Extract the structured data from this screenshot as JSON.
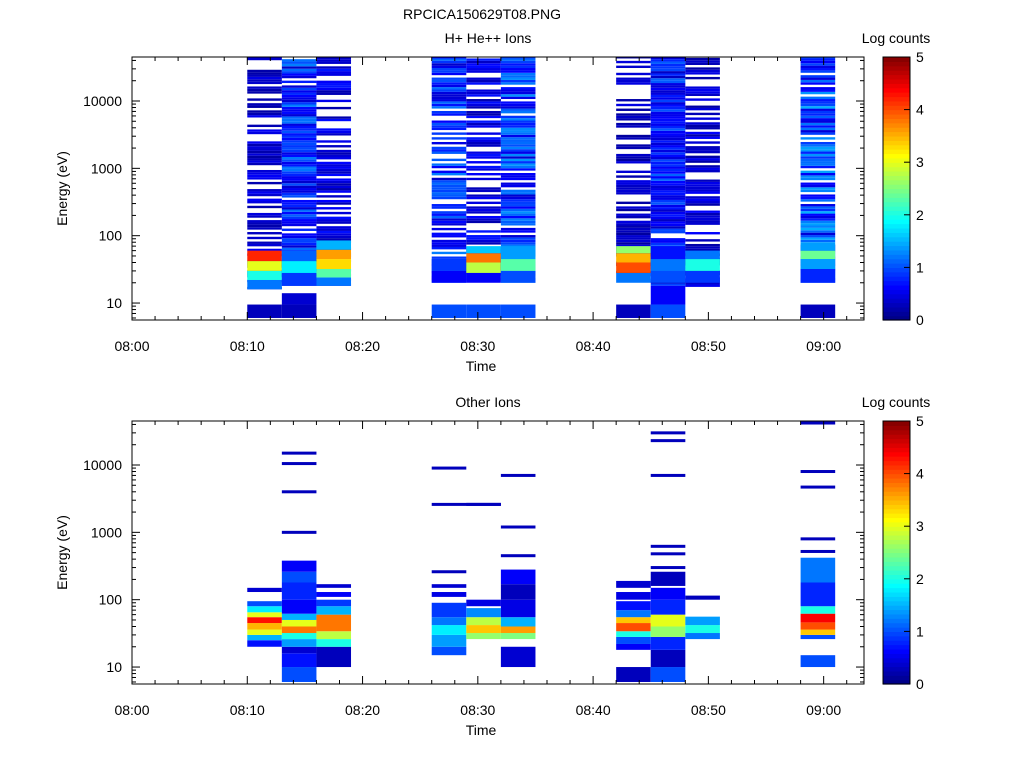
{
  "figure": {
    "title": "RPCICA150629T08.PNG"
  },
  "colorscale": [
    "#00007f",
    "#0000ff",
    "#0080ff",
    "#00ffff",
    "#80ff80",
    "#ffff00",
    "#ff8000",
    "#ff0000",
    "#7f0000"
  ],
  "chart_data": [
    {
      "type": "heatmap",
      "title": "H+ He++ Ions",
      "xlabel": "Time",
      "ylabel": "Energy (eV)",
      "x_ticks": [
        "08:00",
        "08:10",
        "08:20",
        "08:30",
        "08:40",
        "08:50",
        "09:00"
      ],
      "y_ticks": [
        "10",
        "100",
        "1000",
        "10000"
      ],
      "y_scale": "log",
      "ylim": [
        5.6,
        45000
      ],
      "colorbar": {
        "label": "Log counts",
        "ticks": [
          "0",
          "1",
          "2",
          "3",
          "4",
          "5"
        ],
        "range": [
          0,
          5
        ]
      },
      "columns": [
        {
          "t0": "08:10",
          "t1": "08:13",
          "bg": 0.5,
          "sparsity": 0.35,
          "bands": [
            [
              16,
              22,
              1.2
            ],
            [
              22,
              30,
              2.0
            ],
            [
              30,
              42,
              3.0
            ],
            [
              42,
              60,
              4.2
            ]
          ],
          "lowcut": 16,
          "bottom": [
            [
              6,
              9.5,
              0.3
            ]
          ]
        },
        {
          "t0": "08:13",
          "t1": "08:16",
          "bg": 1.0,
          "sparsity": 0.05,
          "bands": [
            [
              18,
              28,
              0.9
            ],
            [
              28,
              42,
              1.8
            ],
            [
              42,
              60,
              1.1
            ]
          ],
          "lowcut": 18,
          "bottom": [
            [
              6,
              9.5,
              0.3
            ],
            [
              9.5,
              14,
              0.4
            ]
          ]
        },
        {
          "t0": "08:16",
          "t1": "08:19",
          "bg": 0.6,
          "sparsity": 0.3,
          "bands": [
            [
              18,
              24,
              1.2
            ],
            [
              24,
              32,
              2.3
            ],
            [
              32,
              45,
              3.3
            ],
            [
              45,
              62,
              3.6
            ],
            [
              62,
              85,
              1.5
            ]
          ],
          "lowcut": 18,
          "bottom": []
        },
        {
          "t0": "08:26",
          "t1": "08:29",
          "bg": 1.0,
          "sparsity": 0.15,
          "bands": [
            [
              20,
              30,
              0.6
            ],
            [
              30,
              45,
              0.9
            ]
          ],
          "lowcut": 20,
          "bottom": [
            [
              6,
              9.5,
              1.0
            ]
          ]
        },
        {
          "t0": "08:29",
          "t1": "08:32",
          "bg": 0.6,
          "sparsity": 0.3,
          "bands": [
            [
              20,
              28,
              0.6
            ],
            [
              28,
              40,
              2.8
            ],
            [
              40,
              55,
              3.8
            ],
            [
              55,
              70,
              1.6
            ]
          ],
          "lowcut": 20,
          "bottom": [
            [
              6,
              9.5,
              1.0
            ]
          ]
        },
        {
          "t0": "08:32",
          "t1": "08:35",
          "bg": 1.1,
          "sparsity": 0.08,
          "bands": [
            [
              20,
              30,
              1.0
            ],
            [
              30,
              45,
              2.3
            ],
            [
              45,
              70,
              1.4
            ]
          ],
          "lowcut": 20,
          "bottom": [
            [
              6,
              9.5,
              1.0
            ]
          ]
        },
        {
          "t0": "08:42",
          "t1": "08:45",
          "bg": 0.4,
          "sparsity": 0.35,
          "bands": [
            [
              20,
              28,
              1.2
            ],
            [
              28,
              40,
              4.0
            ],
            [
              40,
              55,
              3.5
            ],
            [
              55,
              70,
              2.6
            ]
          ],
          "lowcut": 20,
          "bottom": [
            [
              6,
              9.5,
              0.3
            ]
          ]
        },
        {
          "t0": "08:45",
          "t1": "08:48",
          "bg": 0.9,
          "sparsity": 0.05,
          "bands": [
            [
              20,
              30,
              1.0
            ],
            [
              30,
              45,
              1.2
            ],
            [
              45,
              70,
              0.7
            ]
          ],
          "lowcut": 18,
          "bottom": [
            [
              6,
              9.5,
              1.0
            ],
            [
              9.5,
              18,
              0.6
            ]
          ]
        },
        {
          "t0": "08:48",
          "t1": "08:51",
          "bg": 0.5,
          "sparsity": 0.4,
          "bands": [
            [
              20,
              30,
              0.9
            ],
            [
              30,
              45,
              2.0
            ],
            [
              45,
              60,
              1.2
            ]
          ],
          "lowcut": 16,
          "bottom": []
        },
        {
          "t0": "08:58",
          "t1": "09:01",
          "bg": 1.2,
          "sparsity": 0.1,
          "bands": [
            [
              20,
              32,
              0.8
            ],
            [
              32,
              45,
              1.4
            ],
            [
              45,
              60,
              2.4
            ],
            [
              60,
              80,
              1.4
            ]
          ],
          "lowcut": 20,
          "bottom": [
            [
              6,
              9.5,
              0.3
            ]
          ]
        }
      ]
    },
    {
      "type": "heatmap",
      "title": "Other Ions",
      "xlabel": "Time",
      "ylabel": "Energy (eV)",
      "x_ticks": [
        "08:00",
        "08:10",
        "08:20",
        "08:30",
        "08:40",
        "08:50",
        "09:00"
      ],
      "y_ticks": [
        "10",
        "100",
        "1000",
        "10000"
      ],
      "y_scale": "log",
      "ylim": [
        5.6,
        45000
      ],
      "colorbar": {
        "label": "Log counts",
        "ticks": [
          "0",
          "1",
          "2",
          "3",
          "4",
          "5"
        ],
        "range": [
          0,
          5
        ]
      },
      "columns": [
        {
          "t0": "08:10",
          "t1": "08:13",
          "bands": [
            [
              20,
              25,
              0.7
            ],
            [
              25,
              30,
              1.5
            ],
            [
              30,
              36,
              3.0
            ],
            [
              36,
              45,
              3.5
            ],
            [
              45,
              55,
              4.3
            ],
            [
              55,
              65,
              3.0
            ],
            [
              65,
              80,
              1.8
            ],
            [
              80,
              95,
              1.0
            ],
            [
              130,
              150,
              0.4
            ]
          ],
          "lines": []
        },
        {
          "t0": "08:13",
          "t1": "08:16",
          "bands": [
            [
              6,
              10,
              1.0
            ],
            [
              10,
              16,
              0.7
            ],
            [
              16,
              20,
              0.4
            ],
            [
              20,
              26,
              1.4
            ],
            [
              26,
              32,
              2.0
            ],
            [
              32,
              40,
              3.8
            ],
            [
              40,
              50,
              3.0
            ],
            [
              50,
              62,
              1.5
            ],
            [
              62,
              100,
              0.6
            ],
            [
              100,
              180,
              0.8
            ],
            [
              180,
              260,
              1.0
            ],
            [
              260,
              380,
              0.6
            ]
          ],
          "lines": [
            1000,
            4000,
            10500,
            15000
          ]
        },
        {
          "t0": "08:16",
          "t1": "08:19",
          "bands": [
            [
              10,
              20,
              0.3
            ],
            [
              20,
              26,
              2.0
            ],
            [
              26,
              34,
              2.8
            ],
            [
              34,
              60,
              3.8
            ],
            [
              60,
              80,
              1.5
            ],
            [
              80,
              100,
              0.9
            ],
            [
              110,
              130,
              0.6
            ],
            [
              150,
              170,
              0.4
            ]
          ],
          "lines": []
        },
        {
          "t0": "08:26",
          "t1": "08:29",
          "bands": [
            [
              15,
              20,
              1.0
            ],
            [
              20,
              30,
              1.4
            ],
            [
              30,
              42,
              1.8
            ],
            [
              42,
              55,
              1.2
            ],
            [
              55,
              90,
              0.9
            ],
            [
              110,
              130,
              0.5
            ],
            [
              150,
              170,
              0.4
            ]
          ],
          "lines": [
            260,
            2600,
            9000
          ]
        },
        {
          "t0": "08:29",
          "t1": "08:32",
          "bands": [
            [
              26,
              32,
              2.6
            ],
            [
              32,
              42,
              3.4
            ],
            [
              42,
              55,
              2.8
            ],
            [
              55,
              75,
              1.3
            ],
            [
              80,
              100,
              0.5
            ]
          ],
          "lines": [
            2600
          ]
        },
        {
          "t0": "08:32",
          "t1": "08:35",
          "bands": [
            [
              10,
              20,
              0.4
            ],
            [
              26,
              32,
              2.5
            ],
            [
              32,
              40,
              3.6
            ],
            [
              40,
              55,
              1.5
            ],
            [
              55,
              100,
              0.5
            ],
            [
              100,
              170,
              0.3
            ],
            [
              170,
              280,
              0.6
            ]
          ],
          "lines": [
            450,
            1200,
            7000
          ]
        },
        {
          "t0": "08:42",
          "t1": "08:45",
          "bands": [
            [
              6,
              10,
              0.3
            ],
            [
              18,
              22,
              0.6
            ],
            [
              22,
              28,
              1.0
            ],
            [
              28,
              34,
              2.0
            ],
            [
              34,
              45,
              4.0
            ],
            [
              45,
              55,
              3.4
            ],
            [
              55,
              70,
              1.2
            ],
            [
              70,
              95,
              0.7
            ],
            [
              100,
              130,
              0.5
            ],
            [
              150,
              190,
              0.4
            ]
          ],
          "lines": []
        },
        {
          "t0": "08:45",
          "t1": "08:48",
          "bands": [
            [
              6,
              10,
              1.0
            ],
            [
              10,
              18,
              0.3
            ],
            [
              18,
              28,
              0.8
            ],
            [
              28,
              40,
              2.6
            ],
            [
              40,
              60,
              3.0
            ],
            [
              60,
              100,
              0.8
            ],
            [
              100,
              150,
              0.6
            ],
            [
              160,
              260,
              0.3
            ]
          ],
          "lines": [
            300,
            480,
            620,
            7000,
            23000,
            30000
          ]
        },
        {
          "t0": "08:48",
          "t1": "08:51",
          "bands": [
            [
              26,
              32,
              1.2
            ],
            [
              32,
              42,
              2.0
            ],
            [
              42,
              56,
              1.4
            ],
            [
              100,
              115,
              0.3
            ]
          ],
          "lines": []
        },
        {
          "t0": "08:58",
          "t1": "09:01",
          "bands": [
            [
              10,
              15,
              1.0
            ],
            [
              26,
              30,
              1.0
            ],
            [
              30,
              36,
              3.4
            ],
            [
              36,
              46,
              4.0
            ],
            [
              46,
              62,
              4.4
            ],
            [
              62,
              80,
              2.0
            ],
            [
              80,
              180,
              0.8
            ],
            [
              180,
              420,
              1.2
            ]
          ],
          "lines": [
            520,
            800,
            4700,
            8000,
            42000
          ]
        }
      ]
    }
  ]
}
